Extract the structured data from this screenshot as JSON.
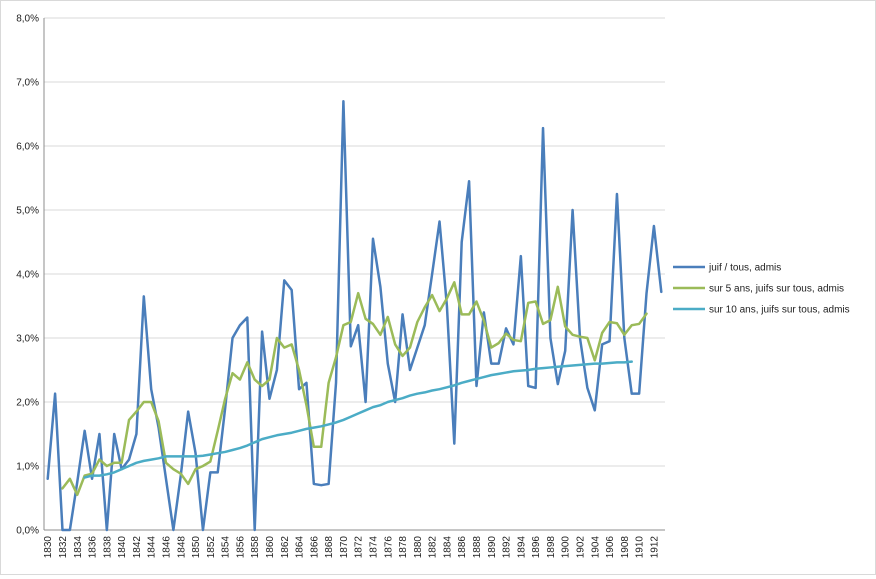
{
  "chart_data": {
    "type": "line",
    "y_ticks": [
      "0,0%",
      "1,0%",
      "2,0%",
      "3,0%",
      "4,0%",
      "5,0%",
      "6,0%",
      "7,0%",
      "8,0%"
    ],
    "ylim": [
      0,
      8
    ],
    "grid": true,
    "legend": "right",
    "x_ticks": [
      "1830",
      "1832",
      "1834",
      "1836",
      "1838",
      "1840",
      "1842",
      "1844",
      "1846",
      "1848",
      "1850",
      "1852",
      "1854",
      "1856",
      "1858",
      "1860",
      "1862",
      "1864",
      "1866",
      "1868",
      "1870",
      "1872",
      "1874",
      "1876",
      "1878",
      "1880",
      "1882",
      "1884",
      "1886",
      "1888",
      "1890",
      "1892",
      "1894",
      "1896",
      "1898",
      "1900",
      "1902",
      "1904",
      "1906",
      "1908",
      "1910",
      "1912"
    ],
    "series": [
      {
        "name": "juif / tous, admis",
        "color": "#4a7ebb",
        "values": [
          0.8,
          2.13,
          0.0,
          0.0,
          0.75,
          1.55,
          0.8,
          1.5,
          0.0,
          1.5,
          0.95,
          1.1,
          1.5,
          3.65,
          2.2,
          1.6,
          0.8,
          0.0,
          0.85,
          1.85,
          1.2,
          0.0,
          0.9,
          0.9,
          1.9,
          3.0,
          3.2,
          3.32,
          0.0,
          3.1,
          2.05,
          2.5,
          3.9,
          3.75,
          2.2,
          2.3,
          0.72,
          0.7,
          0.72,
          2.3,
          6.7,
          2.87,
          3.2,
          2.0,
          4.55,
          3.8,
          2.6,
          2.0,
          3.37,
          2.5,
          2.85,
          3.2,
          4.0,
          4.82,
          3.5,
          1.35,
          4.5,
          5.45,
          2.25,
          3.4,
          2.6,
          2.6,
          3.15,
          2.9,
          4.28,
          2.25,
          2.22,
          6.28,
          3.0,
          2.28,
          2.8,
          5.0,
          3.0,
          2.22,
          1.87,
          2.9,
          2.95,
          5.25,
          3.0,
          2.13,
          2.13,
          3.7,
          4.75,
          3.72
        ]
      },
      {
        "name": "sur 5 ans, juifs sur tous, admis",
        "color": "#9bbb59",
        "values": [
          null,
          null,
          0.65,
          0.8,
          0.55,
          0.85,
          0.88,
          1.1,
          1.0,
          1.05,
          1.05,
          1.72,
          1.85,
          2.0,
          2.0,
          1.7,
          1.05,
          0.95,
          0.88,
          0.72,
          0.95,
          1.0,
          1.07,
          1.55,
          2.05,
          2.45,
          2.35,
          2.62,
          2.35,
          2.25,
          2.35,
          3.0,
          2.85,
          2.9,
          2.5,
          1.95,
          1.3,
          1.3,
          2.3,
          2.7,
          3.2,
          3.25,
          3.7,
          3.3,
          3.22,
          3.05,
          3.33,
          2.9,
          2.72,
          2.85,
          3.25,
          3.48,
          3.67,
          3.42,
          3.62,
          3.87,
          3.37,
          3.37,
          3.57,
          3.27,
          2.85,
          2.92,
          3.07,
          2.97,
          2.95,
          3.55,
          3.57,
          3.22,
          3.28,
          3.8,
          3.18,
          3.05,
          3.02,
          3.0,
          2.65,
          3.08,
          3.25,
          3.23,
          3.05,
          3.2,
          3.22,
          3.38,
          null,
          null
        ]
      },
      {
        "name": "sur 10 ans, juifs sur tous, admis",
        "color": "#4bacc6",
        "values": [
          null,
          null,
          null,
          null,
          null,
          0.82,
          0.85,
          0.85,
          0.87,
          0.9,
          0.95,
          1.0,
          1.05,
          1.08,
          1.1,
          1.12,
          1.15,
          1.15,
          1.15,
          1.15,
          1.15,
          1.16,
          1.18,
          1.2,
          1.22,
          1.25,
          1.28,
          1.32,
          1.37,
          1.42,
          1.45,
          1.48,
          1.5,
          1.52,
          1.55,
          1.58,
          1.6,
          1.62,
          1.65,
          1.68,
          1.72,
          1.77,
          1.82,
          1.87,
          1.92,
          1.95,
          2.0,
          2.03,
          2.06,
          2.1,
          2.13,
          2.15,
          2.18,
          2.2,
          2.23,
          2.26,
          2.3,
          2.33,
          2.36,
          2.39,
          2.42,
          2.44,
          2.46,
          2.48,
          2.49,
          2.5,
          2.52,
          2.53,
          2.54,
          2.55,
          2.56,
          2.57,
          2.58,
          2.59,
          2.6,
          2.6,
          2.61,
          2.62,
          2.62,
          2.63,
          null,
          null,
          null,
          null
        ]
      }
    ]
  }
}
